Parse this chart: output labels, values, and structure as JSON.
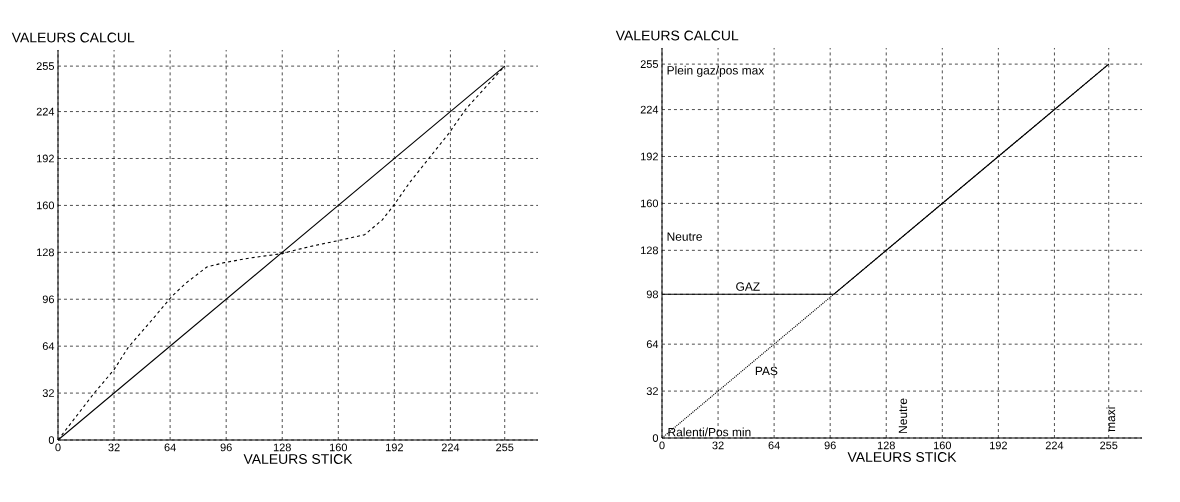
{
  "chart_data": [
    {
      "type": "line",
      "ylabel": "VALEURS CALCUL",
      "xlabel": "VALEURS   STICK",
      "xlim": [
        0,
        274
      ],
      "ylim": [
        0,
        266
      ],
      "xticks": [
        0,
        32,
        64,
        96,
        128,
        160,
        192,
        224,
        255
      ],
      "yticks": [
        0,
        32,
        64,
        96,
        128,
        160,
        192,
        224,
        255
      ],
      "grid": true,
      "series": [
        {
          "color": "#000000",
          "line_style": "solid",
          "x": [
            0,
            255
          ],
          "values": [
            0,
            255
          ]
        },
        {
          "color": "#000000",
          "line_style": "dashed",
          "x": [
            0,
            20,
            32,
            40,
            53,
            65,
            73,
            85,
            95,
            109,
            127,
            144,
            160,
            175,
            185,
            191,
            201,
            211,
            223,
            233,
            255
          ],
          "values": [
            0,
            31,
            48,
            63,
            81,
            98,
            107,
            118,
            121,
            124,
            127,
            132,
            136,
            140,
            150,
            159,
            176,
            191,
            209,
            226,
            255
          ]
        }
      ]
    },
    {
      "type": "line",
      "ylabel": "VALEURS CALCUL",
      "xlabel": "VALEURS   STICK",
      "xlim": [
        0,
        274
      ],
      "ylim": [
        0,
        266
      ],
      "xticks": [
        0,
        32,
        64,
        96,
        128,
        160,
        192,
        224,
        255
      ],
      "yticks": [
        0,
        32,
        64,
        98,
        128,
        160,
        192,
        224,
        255
      ],
      "grid": true,
      "series": [
        {
          "name": "GAZ",
          "color": "#000000",
          "line_style": "solid",
          "x": [
            0,
            98,
            255
          ],
          "values": [
            98,
            98,
            255
          ]
        },
        {
          "name": "PAS",
          "color": "#000000",
          "line_style": "dotted",
          "x": [
            0,
            255
          ],
          "values": [
            0,
            255
          ]
        }
      ],
      "annotations": [
        "Plein gaz/pos max",
        "Neutre",
        {
          "text": "Ralenti/Pos min",
          "x": 0,
          "y": 0
        },
        "Neutre",
        "maxi"
      ]
    }
  ]
}
